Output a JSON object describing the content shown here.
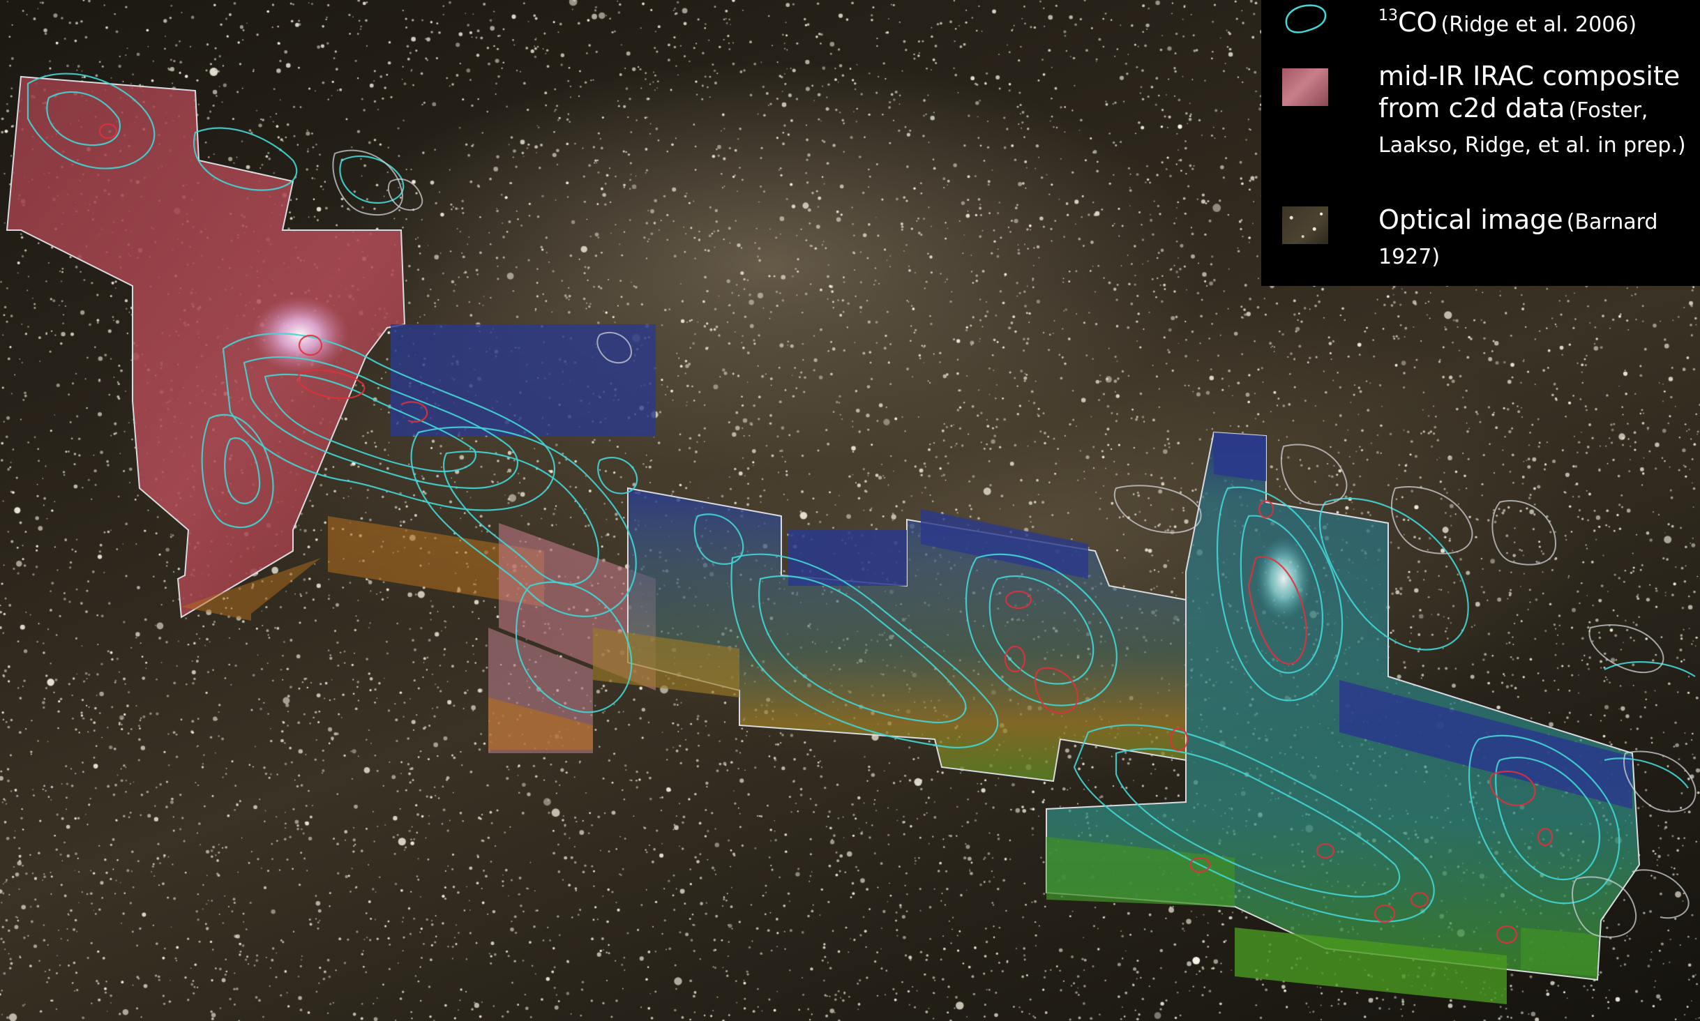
{
  "image": {
    "subject": "Optical star field overlaid with mid-IR mosaic and 13CO contour maps",
    "colors": {
      "sky": "#2c261c",
      "contour_13co": "#43d6d6",
      "contour_red": "#e0313c",
      "outline": "#cfd2d6",
      "mosaic_red": "#b04752",
      "mosaic_blue": "#2a3a8c",
      "mosaic_teal": "#2f8a84",
      "mosaic_green": "#5e8f1e",
      "mosaic_orange": "#b5701e"
    }
  },
  "legend": {
    "co": {
      "superscript": "13",
      "label": "CO",
      "citation": "(Ridge et al. 2006)",
      "icon": "contour-outline-icon"
    },
    "irac": {
      "line1": "mid-IR IRAC composite",
      "line2_main": "from c2d data",
      "line2_cite": "(Foster,",
      "line3": "Laakso, Ridge, et al. in prep.)",
      "icon": "irac-swatch"
    },
    "optical": {
      "label": "Optical image",
      "citation": "(Barnard 1927)",
      "icon": "optical-swatch"
    }
  }
}
